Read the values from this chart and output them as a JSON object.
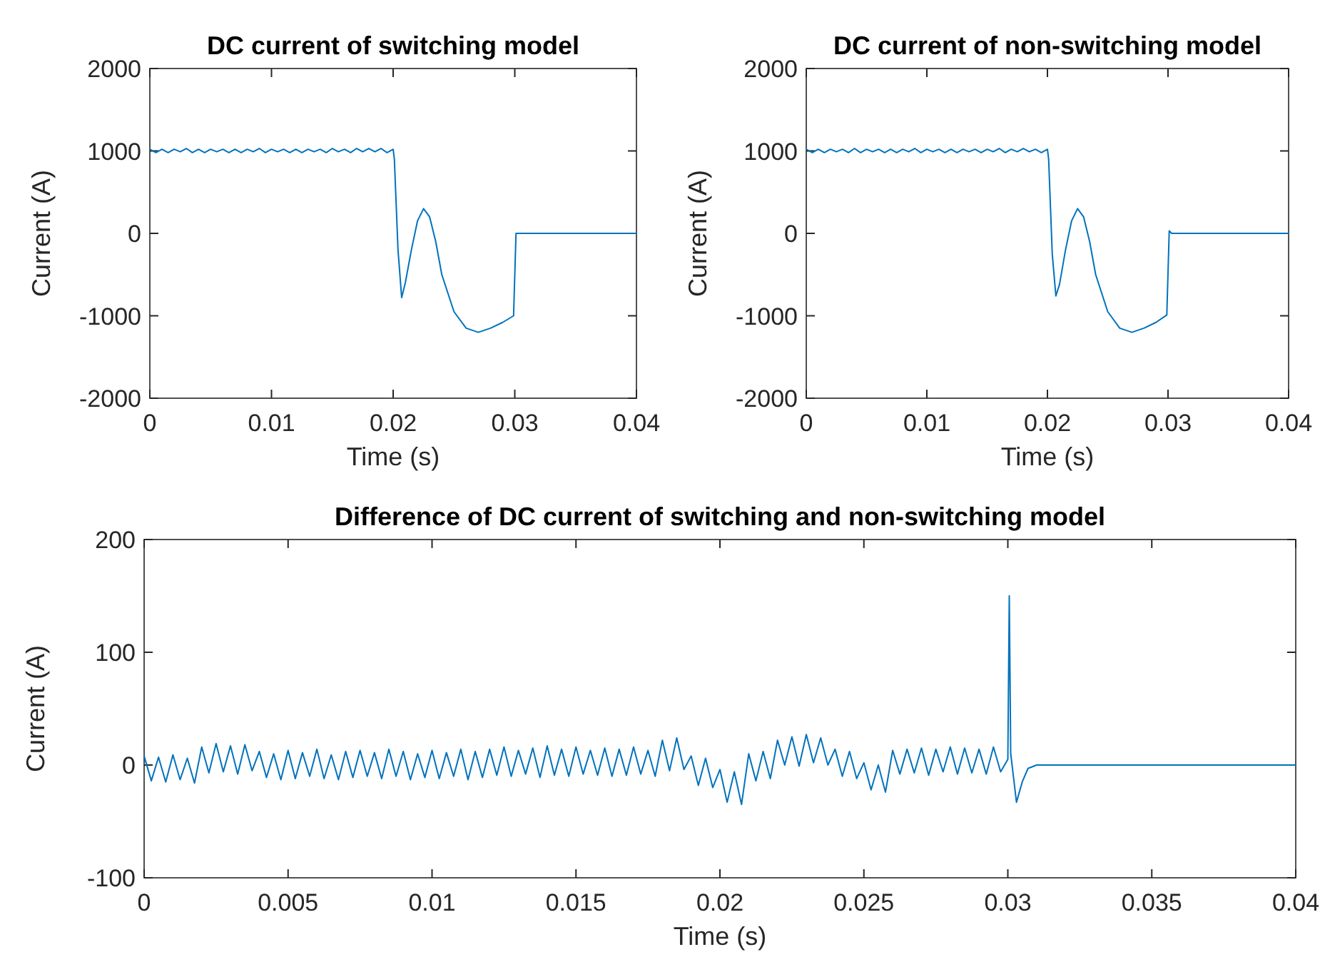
{
  "chart_data": [
    {
      "type": "line",
      "title": "DC current of switching model",
      "xlabel": "Time (s)",
      "ylabel": "Current (A)",
      "xlim": [
        0,
        0.04
      ],
      "ylim": [
        -2000,
        2000
      ],
      "xticks": [
        0,
        0.01,
        0.02,
        0.03,
        0.04
      ],
      "yticks": [
        -2000,
        -1000,
        0,
        1000,
        2000
      ],
      "series": [
        {
          "color": "#0072bd",
          "x": [
            0,
            0.0005,
            0.001,
            0.0015,
            0.002,
            0.0025,
            0.003,
            0.0035,
            0.004,
            0.0045,
            0.005,
            0.0055,
            0.006,
            0.0065,
            0.007,
            0.0075,
            0.008,
            0.0085,
            0.009,
            0.0095,
            0.01,
            0.0105,
            0.011,
            0.0115,
            0.012,
            0.0125,
            0.013,
            0.0135,
            0.014,
            0.0145,
            0.015,
            0.0155,
            0.016,
            0.0165,
            0.017,
            0.0175,
            0.018,
            0.0185,
            0.019,
            0.0195,
            0.02,
            0.0201,
            0.0204,
            0.0207,
            0.021,
            0.0215,
            0.022,
            0.0225,
            0.023,
            0.0235,
            0.024,
            0.025,
            0.026,
            0.027,
            0.028,
            0.029,
            0.0299,
            0.0301,
            0.04
          ],
          "values": [
            1020,
            980,
            1020,
            980,
            1020,
            990,
            1030,
            980,
            1020,
            980,
            1020,
            990,
            1020,
            980,
            1020,
            980,
            1020,
            990,
            1030,
            980,
            1020,
            990,
            1020,
            980,
            1020,
            980,
            1020,
            990,
            1020,
            980,
            1030,
            990,
            1020,
            980,
            1030,
            990,
            1030,
            990,
            1030,
            980,
            1020,
            900,
            -200,
            -780,
            -600,
            -200,
            150,
            300,
            200,
            -100,
            -500,
            -950,
            -1150,
            -1200,
            -1150,
            -1080,
            -1000,
            0,
            0
          ]
        }
      ]
    },
    {
      "type": "line",
      "title": "DC current of non-switching model",
      "xlabel": "Time (s)",
      "ylabel": "Current (A)",
      "xlim": [
        0,
        0.04
      ],
      "ylim": [
        -2000,
        2000
      ],
      "xticks": [
        0,
        0.01,
        0.02,
        0.03,
        0.04
      ],
      "yticks": [
        -2000,
        -1000,
        0,
        1000,
        2000
      ],
      "series": [
        {
          "color": "#0072bd",
          "x": [
            0,
            0.0005,
            0.001,
            0.0015,
            0.002,
            0.0025,
            0.003,
            0.0035,
            0.004,
            0.0045,
            0.005,
            0.0055,
            0.006,
            0.0065,
            0.007,
            0.0075,
            0.008,
            0.0085,
            0.009,
            0.0095,
            0.01,
            0.0105,
            0.011,
            0.0115,
            0.012,
            0.0125,
            0.013,
            0.0135,
            0.014,
            0.0145,
            0.015,
            0.0155,
            0.016,
            0.0165,
            0.017,
            0.0175,
            0.018,
            0.0185,
            0.019,
            0.0195,
            0.02,
            0.0201,
            0.0204,
            0.0207,
            0.021,
            0.0215,
            0.022,
            0.0225,
            0.023,
            0.0235,
            0.024,
            0.025,
            0.026,
            0.027,
            0.028,
            0.029,
            0.0299,
            0.0301,
            0.0303,
            0.04
          ],
          "values": [
            1020,
            980,
            1020,
            980,
            1020,
            990,
            1020,
            980,
            1030,
            980,
            1020,
            990,
            1020,
            980,
            1020,
            980,
            1020,
            990,
            1030,
            980,
            1020,
            990,
            1020,
            980,
            1020,
            980,
            1020,
            990,
            1020,
            980,
            1020,
            990,
            1030,
            980,
            1020,
            990,
            1030,
            990,
            1020,
            980,
            1020,
            900,
            -250,
            -760,
            -620,
            -200,
            150,
            300,
            200,
            -100,
            -500,
            -950,
            -1150,
            -1200,
            -1150,
            -1080,
            -990,
            30,
            0,
            0
          ]
        }
      ]
    },
    {
      "type": "line",
      "title": "Difference of DC current of switching and non-switching model",
      "xlabel": "Time (s)",
      "ylabel": "Current (A)",
      "xlim": [
        0,
        0.04
      ],
      "ylim": [
        -100,
        200
      ],
      "xticks": [
        0,
        0.005,
        0.01,
        0.015,
        0.02,
        0.025,
        0.03,
        0.035,
        0.04
      ],
      "yticks": [
        -100,
        0,
        100,
        200
      ],
      "series": [
        {
          "color": "#0072bd",
          "x": [
            0,
            0.00025,
            0.0005,
            0.00075,
            0.001,
            0.00125,
            0.0015,
            0.00175,
            0.002,
            0.00225,
            0.0025,
            0.00275,
            0.003,
            0.00325,
            0.0035,
            0.00375,
            0.004,
            0.00425,
            0.0045,
            0.00475,
            0.005,
            0.00525,
            0.0055,
            0.00575,
            0.006,
            0.00625,
            0.0065,
            0.00675,
            0.007,
            0.00725,
            0.0075,
            0.00775,
            0.008,
            0.00825,
            0.0085,
            0.00875,
            0.009,
            0.00925,
            0.0095,
            0.00975,
            0.01,
            0.01025,
            0.0105,
            0.01075,
            0.011,
            0.01125,
            0.0115,
            0.01175,
            0.012,
            0.01225,
            0.0125,
            0.01275,
            0.013,
            0.01325,
            0.0135,
            0.01375,
            0.014,
            0.01425,
            0.0145,
            0.01475,
            0.015,
            0.01525,
            0.0155,
            0.01575,
            0.016,
            0.01625,
            0.0165,
            0.01675,
            0.017,
            0.01725,
            0.0175,
            0.01775,
            0.018,
            0.01825,
            0.0185,
            0.01875,
            0.019,
            0.01925,
            0.0195,
            0.01975,
            0.02,
            0.02025,
            0.0205,
            0.02075,
            0.021,
            0.02125,
            0.0215,
            0.02175,
            0.022,
            0.02225,
            0.0225,
            0.02275,
            0.023,
            0.02325,
            0.0235,
            0.02375,
            0.024,
            0.02425,
            0.0245,
            0.02475,
            0.025,
            0.02525,
            0.0255,
            0.02575,
            0.026,
            0.02625,
            0.0265,
            0.02675,
            0.027,
            0.02725,
            0.0275,
            0.02775,
            0.028,
            0.02825,
            0.0285,
            0.02875,
            0.029,
            0.02925,
            0.0295,
            0.02975,
            0.03,
            0.03005,
            0.0301,
            0.0303,
            0.0305,
            0.0307,
            0.031,
            0.04
          ],
          "values": [
            8,
            -14,
            7,
            -15,
            9,
            -13,
            6,
            -16,
            16,
            -7,
            19,
            -6,
            17,
            -8,
            18,
            -5,
            12,
            -11,
            10,
            -13,
            13,
            -12,
            11,
            -10,
            14,
            -12,
            9,
            -13,
            12,
            -11,
            13,
            -10,
            11,
            -12,
            14,
            -10,
            12,
            -13,
            10,
            -11,
            13,
            -12,
            11,
            -10,
            14,
            -13,
            12,
            -11,
            14,
            -9,
            16,
            -10,
            13,
            -8,
            15,
            -11,
            17,
            -9,
            14,
            -10,
            16,
            -8,
            13,
            -9,
            15,
            -10,
            14,
            -9,
            16,
            -8,
            13,
            -10,
            22,
            -5,
            24,
            -4,
            8,
            -18,
            6,
            -20,
            -4,
            -33,
            -6,
            -35,
            10,
            -14,
            12,
            -12,
            22,
            0,
            25,
            -1,
            27,
            2,
            24,
            0,
            14,
            -10,
            12,
            -12,
            2,
            -22,
            0,
            -24,
            13,
            -8,
            14,
            -7,
            15,
            -9,
            14,
            -6,
            16,
            -8,
            15,
            -7,
            14,
            -8,
            16,
            -6,
            5,
            150,
            10,
            -33,
            -15,
            -3,
            0,
            0
          ]
        }
      ]
    }
  ]
}
